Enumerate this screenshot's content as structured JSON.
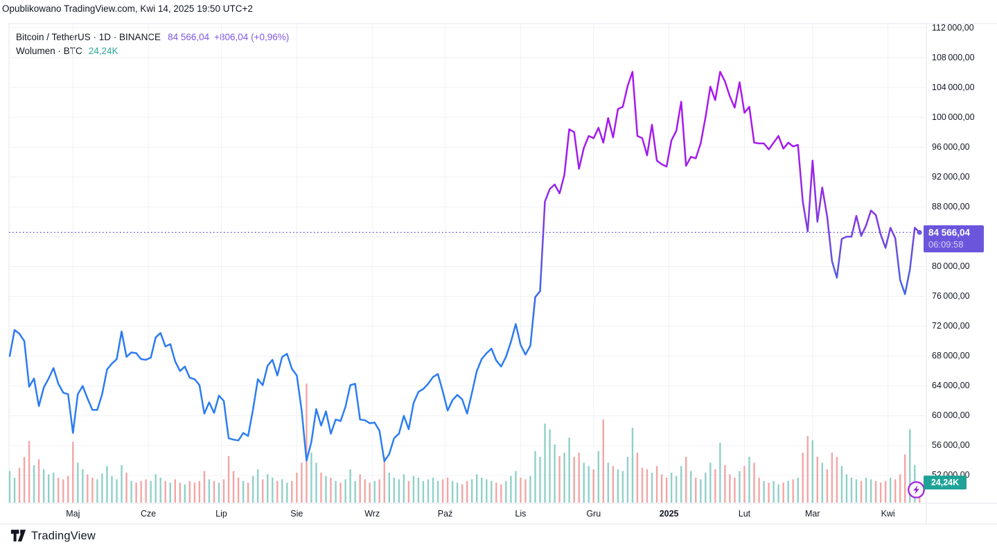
{
  "header": {
    "published_line": "Opublikowano TradingView.com, Kwi 14, 2025 19:50 UTC+2"
  },
  "legend": {
    "symbol_line": "Bitcoin / TetherUS · 1D · BINANCE",
    "price": "84 566,04",
    "change": "+806,04 (+0,96%)",
    "volume_label": "Wolumen · BTC",
    "volume_value": "24,24K"
  },
  "badges": {
    "price": "84 566,04",
    "countdown": "06:09:58",
    "volume": "24,24K"
  },
  "footer": {
    "brand": "TradingView"
  },
  "colors": {
    "text": "#131722",
    "grid": "#f0f1f5",
    "frame": "#e3e6ee",
    "dotted_price_line": "#5C43D8",
    "price_badge_bg": "#6C55DD",
    "volume_badge_bg": "#1FA398",
    "volume_up": "#8FD0C8",
    "volume_down": "#F2A5A4",
    "line_gradient": [
      [
        0,
        "#B113F0"
      ],
      [
        0.28,
        "#A21BEC"
      ],
      [
        0.4,
        "#8536E4"
      ],
      [
        0.48,
        "#6450DC"
      ],
      [
        0.56,
        "#3F64EA"
      ],
      [
        0.65,
        "#2B7AF2"
      ],
      [
        1,
        "#2A80F2"
      ]
    ]
  },
  "chart_data": {
    "type": "line",
    "title": "Bitcoin / TetherUS · 1D · BINANCE",
    "subtitle": "Wolumen · BTC",
    "legend_position": "top-left",
    "grid": true,
    "sample_every_days": 2,
    "x_ticks": [
      {
        "label": "Maj",
        "day": 26
      },
      {
        "label": "Cze",
        "day": 57
      },
      {
        "label": "Lip",
        "day": 87
      },
      {
        "label": "Sie",
        "day": 118
      },
      {
        "label": "Wrz",
        "day": 149
      },
      {
        "label": "Paź",
        "day": 179
      },
      {
        "label": "Lis",
        "day": 210
      },
      {
        "label": "Gru",
        "day": 240
      },
      {
        "label": "2025",
        "day": 271
      },
      {
        "label": "Lut",
        "day": 302
      },
      {
        "label": "Mar",
        "day": 330
      },
      {
        "label": "Kwi",
        "day": 361
      }
    ],
    "y_axis": {
      "min": 50000,
      "max": 113000,
      "tick_step": 4000
    },
    "y_grid": [
      112000,
      108000,
      104000,
      100000,
      96000,
      92000,
      88000,
      84000,
      80000,
      76000,
      72000,
      68000,
      64000,
      60000,
      56000,
      52000
    ],
    "y_labels": [
      112000,
      108000,
      104000,
      100000,
      96000,
      92000,
      88000,
      80000,
      76000,
      72000,
      68000,
      64000,
      60000,
      56000,
      52000
    ],
    "last_price": 84566.04,
    "last_change": "+806,04 (+0,96%)",
    "countdown": "06:09:58",
    "last_volume_k": 24.24,
    "price_series": [
      68000,
      71500,
      71000,
      70000,
      63900,
      65000,
      61300,
      63800,
      65000,
      66400,
      64300,
      63100,
      62900,
      57700,
      62900,
      64000,
      62300,
      60800,
      60800,
      62900,
      66200,
      67000,
      67600,
      71300,
      67900,
      68500,
      68400,
      67600,
      67500,
      67800,
      70500,
      71100,
      69300,
      69600,
      67300,
      66000,
      66600,
      65100,
      64900,
      64100,
      60300,
      61800,
      60400,
      62700,
      62000,
      57000,
      56800,
      56700,
      57700,
      57300,
      60800,
      64900,
      64100,
      66700,
      67500,
      65400,
      67900,
      68300,
      66300,
      65400,
      60700,
      54000,
      56500,
      60900,
      58700,
      60600,
      57600,
      59500,
      59300,
      61200,
      64100,
      64300,
      59500,
      59400,
      59000,
      59100,
      58000,
      53900,
      54900,
      57000,
      57600,
      60000,
      58200,
      61700,
      63200,
      63600,
      64300,
      65200,
      65600,
      63300,
      60700,
      62100,
      62800,
      62200,
      60300,
      63100,
      66000,
      67600,
      68400,
      69000,
      67400,
      66600,
      67900,
      69900,
      72300,
      69500,
      68200,
      69400,
      75900,
      76700,
      88700,
      90400,
      91000,
      89800,
      92300,
      98400,
      98000,
      93100,
      95900,
      97500,
      97200,
      98600,
      96600,
      99900,
      97300,
      101100,
      101400,
      104200,
      106100,
      97500,
      97200,
      94900,
      99000,
      94200,
      93700,
      93400,
      96900,
      98200,
      102100,
      93500,
      94700,
      94500,
      96500,
      100000,
      104100,
      102300,
      106100,
      104800,
      102800,
      101300,
      104700,
      100600,
      101400,
      96600,
      96500,
      96500,
      95700,
      96600,
      97500,
      95800,
      96600,
      96100,
      96300,
      88700,
      84700,
      94200,
      86000,
      90600,
      86700,
      80700,
      78500,
      83700,
      84000,
      84000,
      86800,
      84100,
      85500,
      87500,
      86900,
      84300,
      82500,
      85200,
      83800,
      78200,
      76300,
      79600,
      85200,
      84566.04
    ],
    "volume_series_k": [
      38,
      30,
      42,
      55,
      74,
      45,
      52,
      40,
      34,
      36,
      30,
      28,
      32,
      73,
      48,
      40,
      34,
      30,
      28,
      35,
      44,
      32,
      28,
      45,
      36,
      26,
      24,
      26,
      28,
      26,
      34,
      30,
      26,
      24,
      28,
      24,
      22,
      26,
      24,
      26,
      38,
      28,
      26,
      24,
      28,
      56,
      38,
      30,
      26,
      24,
      32,
      40,
      28,
      34,
      30,
      26,
      28,
      24,
      26,
      36,
      48,
      143,
      60,
      48,
      36,
      32,
      30,
      26,
      24,
      28,
      40,
      26,
      34,
      28,
      24,
      26,
      28,
      55,
      36,
      30,
      28,
      34,
      26,
      32,
      30,
      26,
      28,
      30,
      26,
      28,
      30,
      26,
      24,
      22,
      26,
      28,
      34,
      30,
      28,
      26,
      24,
      22,
      26,
      32,
      38,
      30,
      28,
      32,
      62,
      55,
      95,
      88,
      70,
      56,
      60,
      78,
      55,
      60,
      48,
      44,
      40,
      62,
      100,
      48,
      44,
      40,
      38,
      55,
      90,
      60,
      42,
      40,
      36,
      44,
      34,
      30,
      36,
      32,
      44,
      55,
      38,
      30,
      28,
      36,
      48,
      40,
      72,
      45,
      34,
      30,
      38,
      44,
      55,
      48,
      30,
      26,
      24,
      26,
      22,
      24,
      26,
      28,
      30,
      60,
      80,
      75,
      55,
      48,
      40,
      60,
      55,
      44,
      34,
      30,
      28,
      26,
      30,
      28,
      26,
      24,
      26,
      30,
      28,
      34,
      58,
      88,
      45,
      24.24
    ]
  }
}
